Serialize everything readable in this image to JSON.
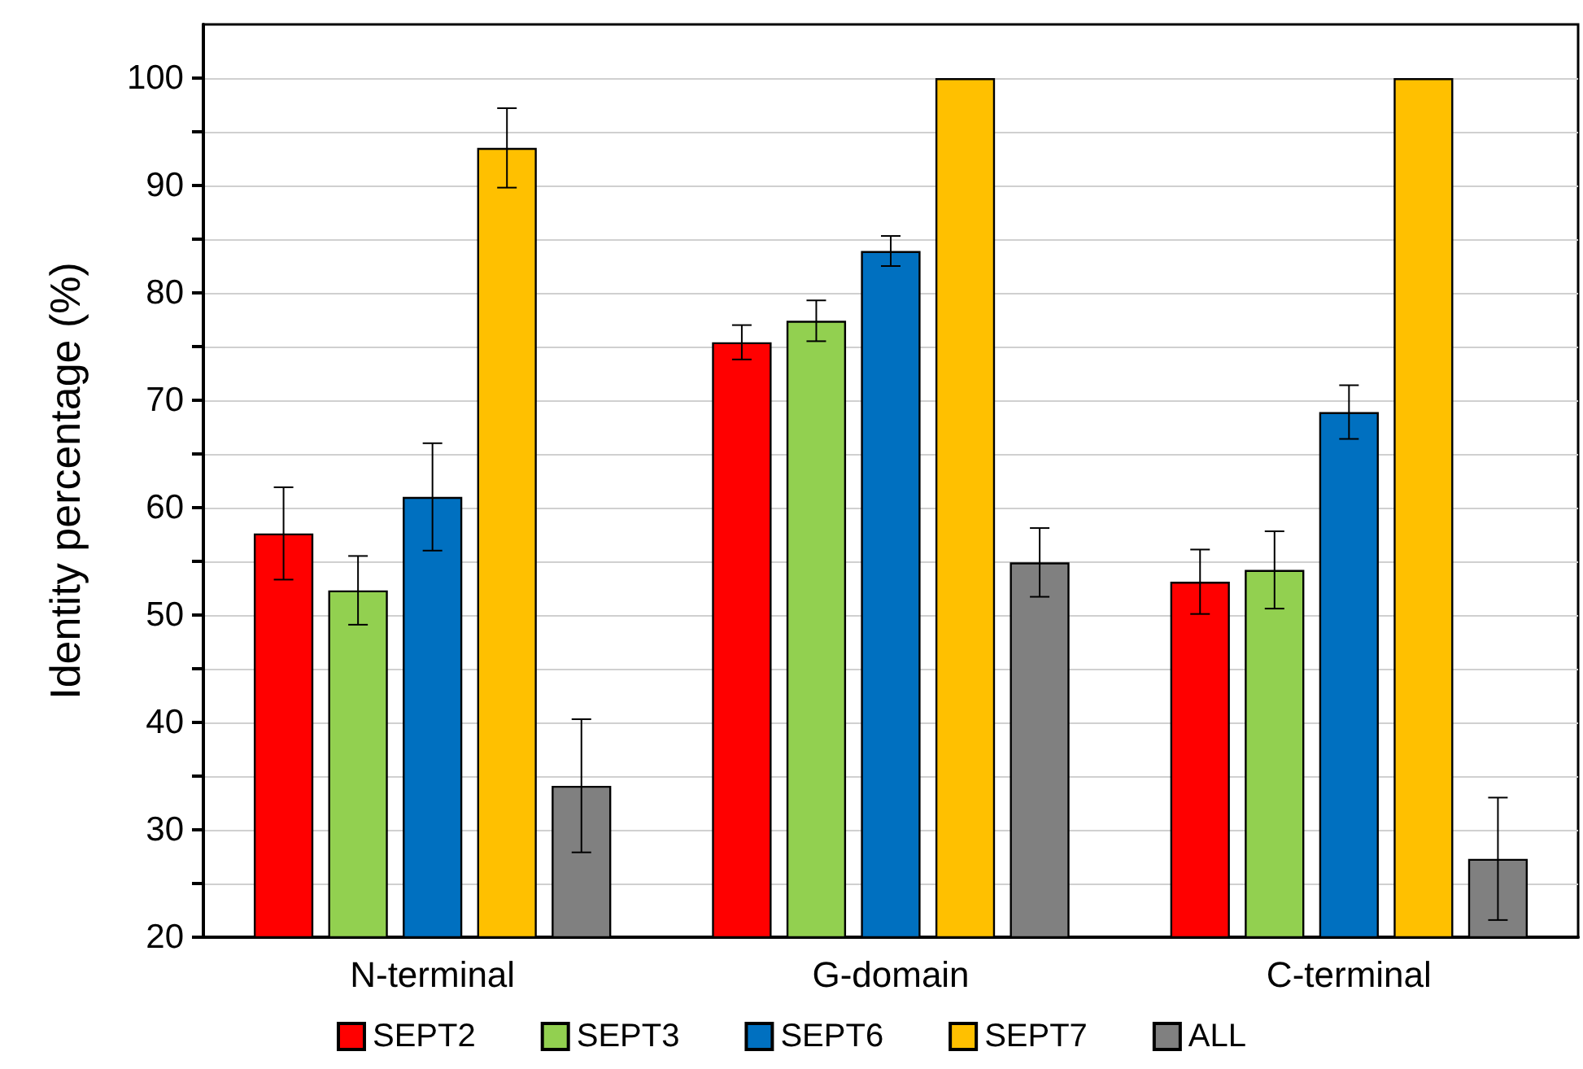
{
  "chart_data": {
    "type": "bar",
    "ylabel": "Identity percentage (%)",
    "categories": [
      "N-terminal",
      "G-domain",
      "C-terminal"
    ],
    "series": [
      {
        "name": "SEPT2",
        "color": "#ff0000",
        "values": [
          57.6,
          75.4,
          53.1
        ],
        "errors": [
          4.3,
          1.6,
          3.0
        ]
      },
      {
        "name": "SEPT3",
        "color": "#92d050",
        "values": [
          52.3,
          77.4,
          54.2
        ],
        "errors": [
          3.2,
          1.9,
          3.6
        ]
      },
      {
        "name": "SEPT6",
        "color": "#0070c0",
        "values": [
          61.0,
          83.9,
          68.9
        ],
        "errors": [
          5.0,
          1.4,
          2.5
        ]
      },
      {
        "name": "SEPT7",
        "color": "#ffc000",
        "values": [
          93.5,
          100,
          100
        ],
        "errors": [
          3.7,
          null,
          null
        ]
      },
      {
        "name": "ALL",
        "color": "#808080",
        "values": [
          34.1,
          54.9,
          27.3
        ],
        "errors": [
          6.2,
          3.2,
          5.7
        ]
      }
    ],
    "ylim": [
      20,
      105
    ],
    "yticks": [
      20,
      {
        "value": 25,
        "label": null
      },
      30,
      {
        "value": 35,
        "label": null
      },
      40,
      {
        "value": 45,
        "label": null
      },
      50,
      {
        "value": 55,
        "label": null
      },
      60,
      {
        "value": 65,
        "label": null
      },
      70,
      {
        "value": 75,
        "label": null
      },
      80,
      {
        "value": 85,
        "label": null
      },
      90,
      {
        "value": 95,
        "label": null
      },
      100
    ],
    "grid": true,
    "legend": "bottom"
  }
}
